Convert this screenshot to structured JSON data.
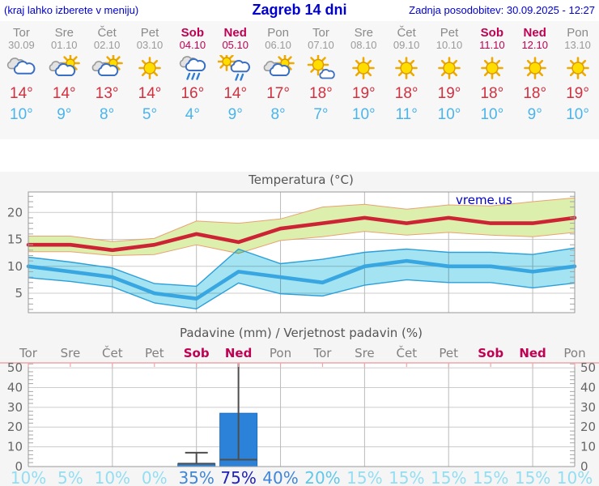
{
  "header": {
    "left": "(kraj lahko izberete v meniju)",
    "title": "Zagreb 14 dni",
    "right": "Zadnja posodobitev: 30.09.2025 - 12:27"
  },
  "colors": {
    "header_text": "#0000cc",
    "weekend": "#c00052",
    "weekday": "#8a8a8a",
    "tmax_text": "#d32f3f",
    "tmin_text": "#4ab5ec",
    "max_line": "#cc2434",
    "max_band": "#ddefac",
    "max_band_edge": "#e9a271",
    "min_line": "#38a6e0",
    "min_band": "#a3e3f2",
    "min_band_edge": "#2b9fd9",
    "bar": "#2b82d8",
    "whisker": "#4d4d4d",
    "prob_low": "#92def2",
    "prob_20": "#5fc8ea",
    "prob_mid": "#3f86d8",
    "prob_high": "#2020bb"
  },
  "days": [
    {
      "name": "Tor",
      "date": "30.09",
      "weekend": false,
      "icon": "cloudy",
      "tmax": "14°",
      "tmin": "10°"
    },
    {
      "name": "Sre",
      "date": "01.10",
      "weekend": false,
      "icon": "partly-cloudy",
      "tmax": "14°",
      "tmin": "9°"
    },
    {
      "name": "Čet",
      "date": "02.10",
      "weekend": false,
      "icon": "partly-cloudy",
      "tmax": "13°",
      "tmin": "8°"
    },
    {
      "name": "Pet",
      "date": "03.10",
      "weekend": false,
      "icon": "sunny",
      "tmax": "14°",
      "tmin": "5°"
    },
    {
      "name": "Sob",
      "date": "04.10",
      "weekend": true,
      "icon": "rain",
      "tmax": "16°",
      "tmin": "4°"
    },
    {
      "name": "Ned",
      "date": "05.10",
      "weekend": true,
      "icon": "sun-rain",
      "tmax": "14°",
      "tmin": "9°"
    },
    {
      "name": "Pon",
      "date": "06.10",
      "weekend": false,
      "icon": "partly-cloudy",
      "tmax": "17°",
      "tmin": "8°"
    },
    {
      "name": "Tor",
      "date": "07.10",
      "weekend": false,
      "icon": "mostly-sunny",
      "tmax": "18°",
      "tmin": "7°"
    },
    {
      "name": "Sre",
      "date": "08.10",
      "weekend": false,
      "icon": "sunny",
      "tmax": "19°",
      "tmin": "10°"
    },
    {
      "name": "Čet",
      "date": "09.10",
      "weekend": false,
      "icon": "sunny",
      "tmax": "18°",
      "tmin": "11°"
    },
    {
      "name": "Pet",
      "date": "10.10",
      "weekend": false,
      "icon": "sunny",
      "tmax": "19°",
      "tmin": "10°"
    },
    {
      "name": "Sob",
      "date": "11.10",
      "weekend": true,
      "icon": "sunny",
      "tmax": "18°",
      "tmin": "10°"
    },
    {
      "name": "Ned",
      "date": "12.10",
      "weekend": true,
      "icon": "sunny",
      "tmax": "18°",
      "tmin": "9°"
    },
    {
      "name": "Pon",
      "date": "13.10",
      "weekend": false,
      "icon": "sunny",
      "tmax": "19°",
      "tmin": "10°"
    }
  ],
  "chart_data": [
    {
      "type": "line",
      "title": "Temperatura (°C)",
      "watermark": "vreme.us",
      "categories": [
        "30.09",
        "01.10",
        "02.10",
        "03.10",
        "04.10",
        "05.10",
        "06.10",
        "07.10",
        "08.10",
        "09.10",
        "10.10",
        "11.10",
        "12.10",
        "13.10"
      ],
      "ylim": [
        1.4,
        23.8
      ],
      "yticks": [
        5,
        10,
        15,
        20
      ],
      "grid": "on",
      "series": [
        {
          "name": "max",
          "color": "#cc2434",
          "values": [
            14,
            14,
            13,
            14,
            16,
            14.5,
            17,
            18,
            19,
            18,
            19,
            18,
            18,
            19
          ]
        },
        {
          "name": "max_band_high",
          "values": [
            15.6,
            15.6,
            14.6,
            15.2,
            18.4,
            18,
            18.8,
            21,
            21.5,
            20.6,
            21.4,
            21.2,
            22,
            22.7
          ]
        },
        {
          "name": "max_band_low",
          "values": [
            12.7,
            12.7,
            12,
            12.2,
            14,
            12.4,
            14.8,
            15.5,
            16.5,
            15.8,
            16.3,
            15.8,
            15.5,
            16.3
          ]
        },
        {
          "name": "min",
          "color": "#38a6e0",
          "values": [
            10,
            9,
            8,
            5,
            4,
            9,
            8,
            7,
            10,
            11,
            10,
            10,
            9,
            10
          ]
        },
        {
          "name": "min_band_high",
          "values": [
            11.7,
            10.8,
            9.7,
            6.8,
            6.3,
            13.2,
            10.5,
            11.3,
            12.6,
            13.2,
            12.6,
            12.6,
            12.2,
            13.4
          ]
        },
        {
          "name": "min_band_low",
          "values": [
            7.9,
            7.2,
            6.2,
            3.2,
            2.1,
            6.9,
            4.9,
            4.5,
            6.5,
            7.5,
            7,
            7,
            6,
            6.9
          ]
        }
      ]
    },
    {
      "type": "bar",
      "title": "Padavine (mm) / Verjetnost padavin (%)",
      "categories": [
        "Tor",
        "Sre",
        "Čet",
        "Pet",
        "Sob",
        "Ned",
        "Pon",
        "Tor",
        "Sre",
        "Čet",
        "Pet",
        "Sob",
        "Ned",
        "Pon"
      ],
      "weekend": [
        false,
        false,
        false,
        false,
        true,
        true,
        false,
        false,
        false,
        false,
        false,
        true,
        true,
        false
      ],
      "values": [
        0,
        0,
        0,
        0,
        1.5,
        27,
        0,
        0,
        0,
        0,
        0,
        0,
        0,
        0
      ],
      "whisker_low": [
        null,
        null,
        null,
        null,
        1.5,
        3.5,
        null,
        null,
        null,
        null,
        null,
        null,
        null,
        null
      ],
      "whisker_high": [
        null,
        null,
        null,
        null,
        7,
        52.5,
        null,
        null,
        null,
        null,
        null,
        null,
        null,
        null
      ],
      "ylim": [
        0,
        52.5
      ],
      "yticks": [
        0,
        10,
        20,
        30,
        40,
        50
      ],
      "grid": "on",
      "probabilities": [
        10,
        5,
        10,
        0,
        35,
        75,
        40,
        20,
        15,
        15,
        15,
        15,
        15,
        10
      ],
      "prob_unit": "%"
    }
  ]
}
